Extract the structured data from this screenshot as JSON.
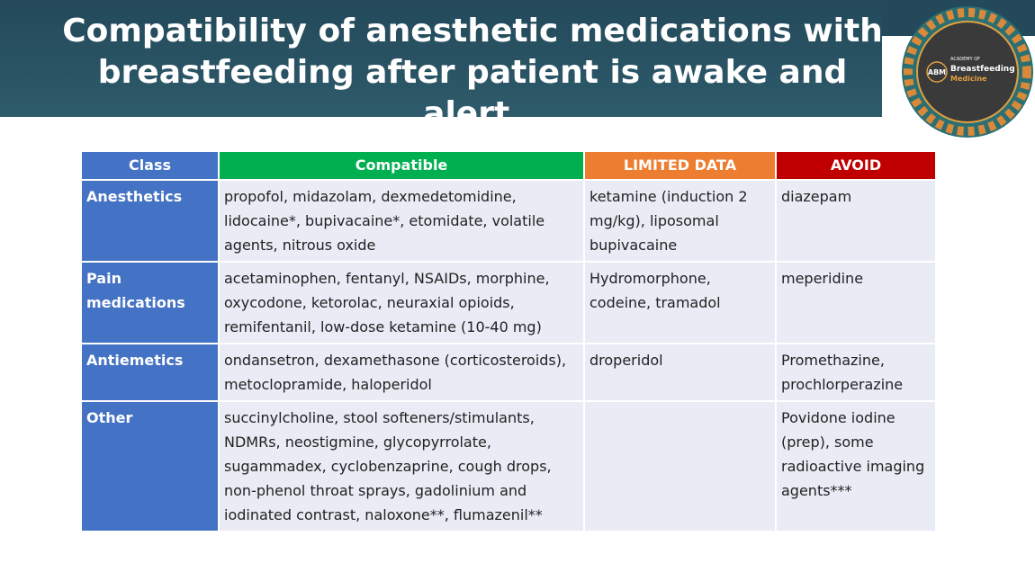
{
  "header": {
    "title": "Compatibility of anesthetic medications with breastfeeding after patient is awake and alert."
  },
  "logo": {
    "abbr": "ABM",
    "top": "ACADEMY OF",
    "name": "Breastfeeding",
    "sub": "Medicine"
  },
  "table": {
    "columns": [
      "Class",
      "Compatible",
      "LIMITED DATA",
      "AVOID"
    ],
    "rows": [
      [
        "Anesthetics",
        "propofol, midazolam, dexmedetomidine, lidocaine*, bupivacaine*, etomidate, volatile agents, nitrous oxide",
        "ketamine (induction 2 mg/kg), liposomal bupivacaine",
        "diazepam"
      ],
      [
        "Pain medications",
        "acetaminophen, fentanyl, NSAIDs, morphine, oxycodone, ketorolac, neuraxial opioids, remifentanil, low-dose ketamine (10-40 mg)",
        "Hydromorphone, codeine, tramadol",
        "meperidine"
      ],
      [
        "Antiemetics",
        "ondansetron, dexamethasone (corticosteroids), metoclopramide, haloperidol",
        "droperidol",
        "Promethazine, prochlorperazine"
      ],
      [
        "Other",
        "succinylcholine, stool softeners/stimulants, NDMRs, neostigmine, glycopyrrolate, sugammadex, cyclobenzaprine, cough drops, non-phenol throat sprays, gadolinium and iodinated contrast, naloxone**, flumazenil**",
        "",
        "Povidone iodine (prep), some radioactive imaging agents***"
      ]
    ]
  }
}
